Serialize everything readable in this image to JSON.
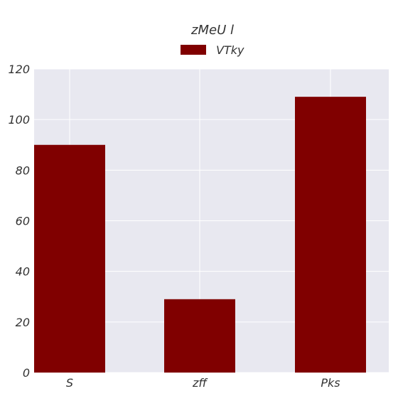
{
  "chart_data": {
    "type": "bar",
    "title": "zMeU l",
    "xlabel": "",
    "ylabel": "",
    "categories": [
      "S",
      "zff",
      "Pks"
    ],
    "series": [
      {
        "name": "VTky",
        "values": [
          90,
          29,
          109
        ],
        "color": "#800000"
      }
    ],
    "ylim": [
      0,
      120
    ],
    "yticks": [
      0,
      20,
      40,
      60,
      80,
      100,
      120
    ],
    "grid": true,
    "legend_position": "top-center",
    "plot_background": "#e8e8f0",
    "grid_color": "#ffffff"
  }
}
